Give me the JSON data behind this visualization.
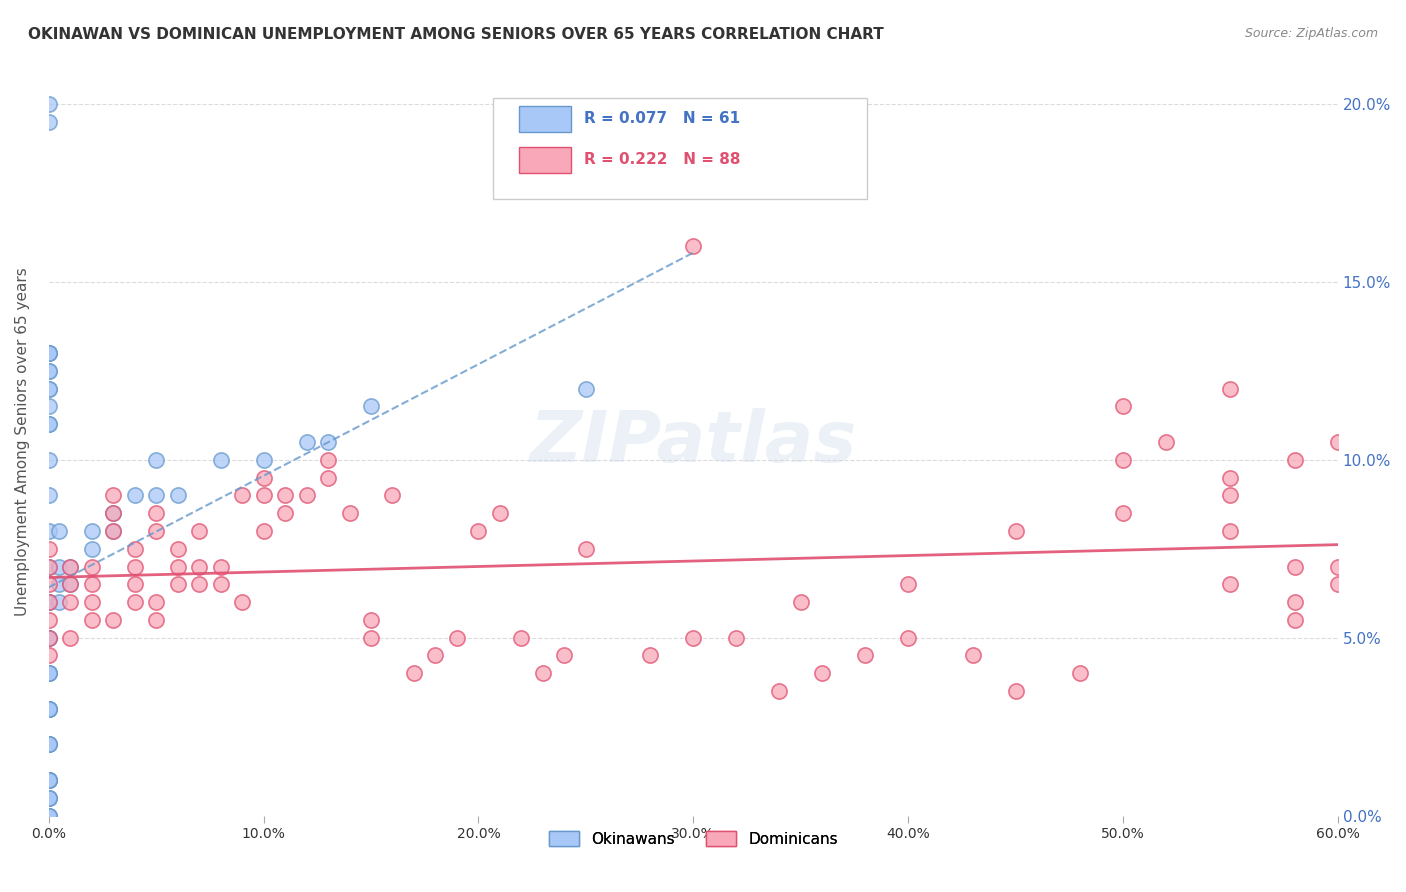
{
  "title": "OKINAWAN VS DOMINICAN UNEMPLOYMENT AMONG SENIORS OVER 65 YEARS CORRELATION CHART",
  "source": "Source: ZipAtlas.com",
  "xlabel_bottom": "",
  "ylabel": "Unemployment Among Seniors over 65 years",
  "x_ticks": [
    0.0,
    0.1,
    0.2,
    0.3,
    0.4,
    0.5,
    0.6
  ],
  "x_tick_labels": [
    "0.0%",
    "10.0%",
    "20.0%",
    "30.0%",
    "40.0%",
    "50.0%",
    "60.0%"
  ],
  "y_ticks": [
    0.0,
    0.05,
    0.1,
    0.15,
    0.2
  ],
  "y_tick_labels_left": [
    "",
    "",
    "",
    "",
    ""
  ],
  "y_tick_labels_right": [
    "0.0%",
    "5.0%",
    "10.0%",
    "15.0%",
    "20.0%"
  ],
  "xlim": [
    0.0,
    0.6
  ],
  "ylim": [
    0.0,
    0.21
  ],
  "legend_okinawan_R": "0.077",
  "legend_okinawan_N": "61",
  "legend_dominican_R": "0.222",
  "legend_dominican_N": "88",
  "okinawan_color": "#a8c8f8",
  "dominican_color": "#f8a8b8",
  "okinawan_line_color": "#6699cc",
  "dominican_line_color": "#e05070",
  "watermark": "ZIPatlas",
  "okinawan_x": [
    0.0,
    0.0,
    0.0,
    0.0,
    0.0,
    0.0,
    0.0,
    0.0,
    0.0,
    0.0,
    0.0,
    0.0,
    0.0,
    0.0,
    0.0,
    0.0,
    0.0,
    0.0,
    0.0,
    0.0,
    0.0,
    0.0,
    0.0,
    0.0,
    0.0,
    0.0,
    0.0,
    0.0,
    0.0,
    0.0,
    0.0,
    0.0,
    0.0,
    0.0,
    0.0,
    0.0,
    0.0,
    0.0,
    0.0,
    0.0,
    0.0,
    0.005,
    0.005,
    0.005,
    0.005,
    0.01,
    0.01,
    0.02,
    0.02,
    0.03,
    0.03,
    0.04,
    0.05,
    0.05,
    0.06,
    0.08,
    0.1,
    0.12,
    0.13,
    0.15,
    0.25
  ],
  "okinawan_y": [
    0.0,
    0.0,
    0.0,
    0.005,
    0.005,
    0.005,
    0.01,
    0.01,
    0.01,
    0.01,
    0.01,
    0.02,
    0.02,
    0.02,
    0.03,
    0.03,
    0.03,
    0.03,
    0.04,
    0.04,
    0.04,
    0.05,
    0.05,
    0.06,
    0.06,
    0.07,
    0.08,
    0.09,
    0.1,
    0.11,
    0.12,
    0.13,
    0.125,
    0.13,
    0.2,
    0.195,
    0.13,
    0.125,
    0.12,
    0.115,
    0.11,
    0.06,
    0.065,
    0.07,
    0.08,
    0.07,
    0.065,
    0.075,
    0.08,
    0.08,
    0.085,
    0.09,
    0.09,
    0.1,
    0.09,
    0.1,
    0.1,
    0.105,
    0.105,
    0.115,
    0.12
  ],
  "dominican_x": [
    0.0,
    0.0,
    0.0,
    0.0,
    0.0,
    0.0,
    0.0,
    0.01,
    0.01,
    0.01,
    0.01,
    0.02,
    0.02,
    0.02,
    0.02,
    0.03,
    0.03,
    0.03,
    0.03,
    0.04,
    0.04,
    0.04,
    0.04,
    0.05,
    0.05,
    0.05,
    0.05,
    0.06,
    0.06,
    0.06,
    0.07,
    0.07,
    0.07,
    0.08,
    0.08,
    0.09,
    0.09,
    0.1,
    0.1,
    0.1,
    0.11,
    0.11,
    0.12,
    0.13,
    0.13,
    0.14,
    0.15,
    0.15,
    0.16,
    0.17,
    0.18,
    0.19,
    0.2,
    0.21,
    0.22,
    0.23,
    0.24,
    0.25,
    0.28,
    0.3,
    0.32,
    0.34,
    0.36,
    0.38,
    0.4,
    0.43,
    0.45,
    0.48,
    0.5,
    0.52,
    0.55,
    0.58,
    0.3,
    0.35,
    0.4,
    0.45,
    0.5,
    0.55,
    0.5,
    0.55,
    0.55,
    0.58,
    0.58,
    0.6,
    0.6,
    0.58,
    0.6,
    0.55
  ],
  "dominican_y": [
    0.06,
    0.065,
    0.07,
    0.075,
    0.05,
    0.055,
    0.045,
    0.06,
    0.065,
    0.07,
    0.05,
    0.055,
    0.06,
    0.065,
    0.07,
    0.08,
    0.085,
    0.09,
    0.055,
    0.06,
    0.065,
    0.07,
    0.075,
    0.08,
    0.085,
    0.06,
    0.055,
    0.065,
    0.07,
    0.075,
    0.07,
    0.08,
    0.065,
    0.07,
    0.065,
    0.06,
    0.09,
    0.09,
    0.095,
    0.08,
    0.09,
    0.085,
    0.09,
    0.095,
    0.1,
    0.085,
    0.05,
    0.055,
    0.09,
    0.04,
    0.045,
    0.05,
    0.08,
    0.085,
    0.05,
    0.04,
    0.045,
    0.075,
    0.045,
    0.16,
    0.05,
    0.035,
    0.04,
    0.045,
    0.05,
    0.045,
    0.035,
    0.04,
    0.1,
    0.105,
    0.095,
    0.07,
    0.05,
    0.06,
    0.065,
    0.08,
    0.085,
    0.09,
    0.115,
    0.12,
    0.065,
    0.055,
    0.06,
    0.065,
    0.07,
    0.1,
    0.105,
    0.08
  ],
  "background_color": "#ffffff",
  "grid_color": "#cccccc",
  "title_color": "#333333",
  "axis_label_color": "#555555",
  "tick_color_right": "#4472c4",
  "tick_color_bottom": "#333333"
}
